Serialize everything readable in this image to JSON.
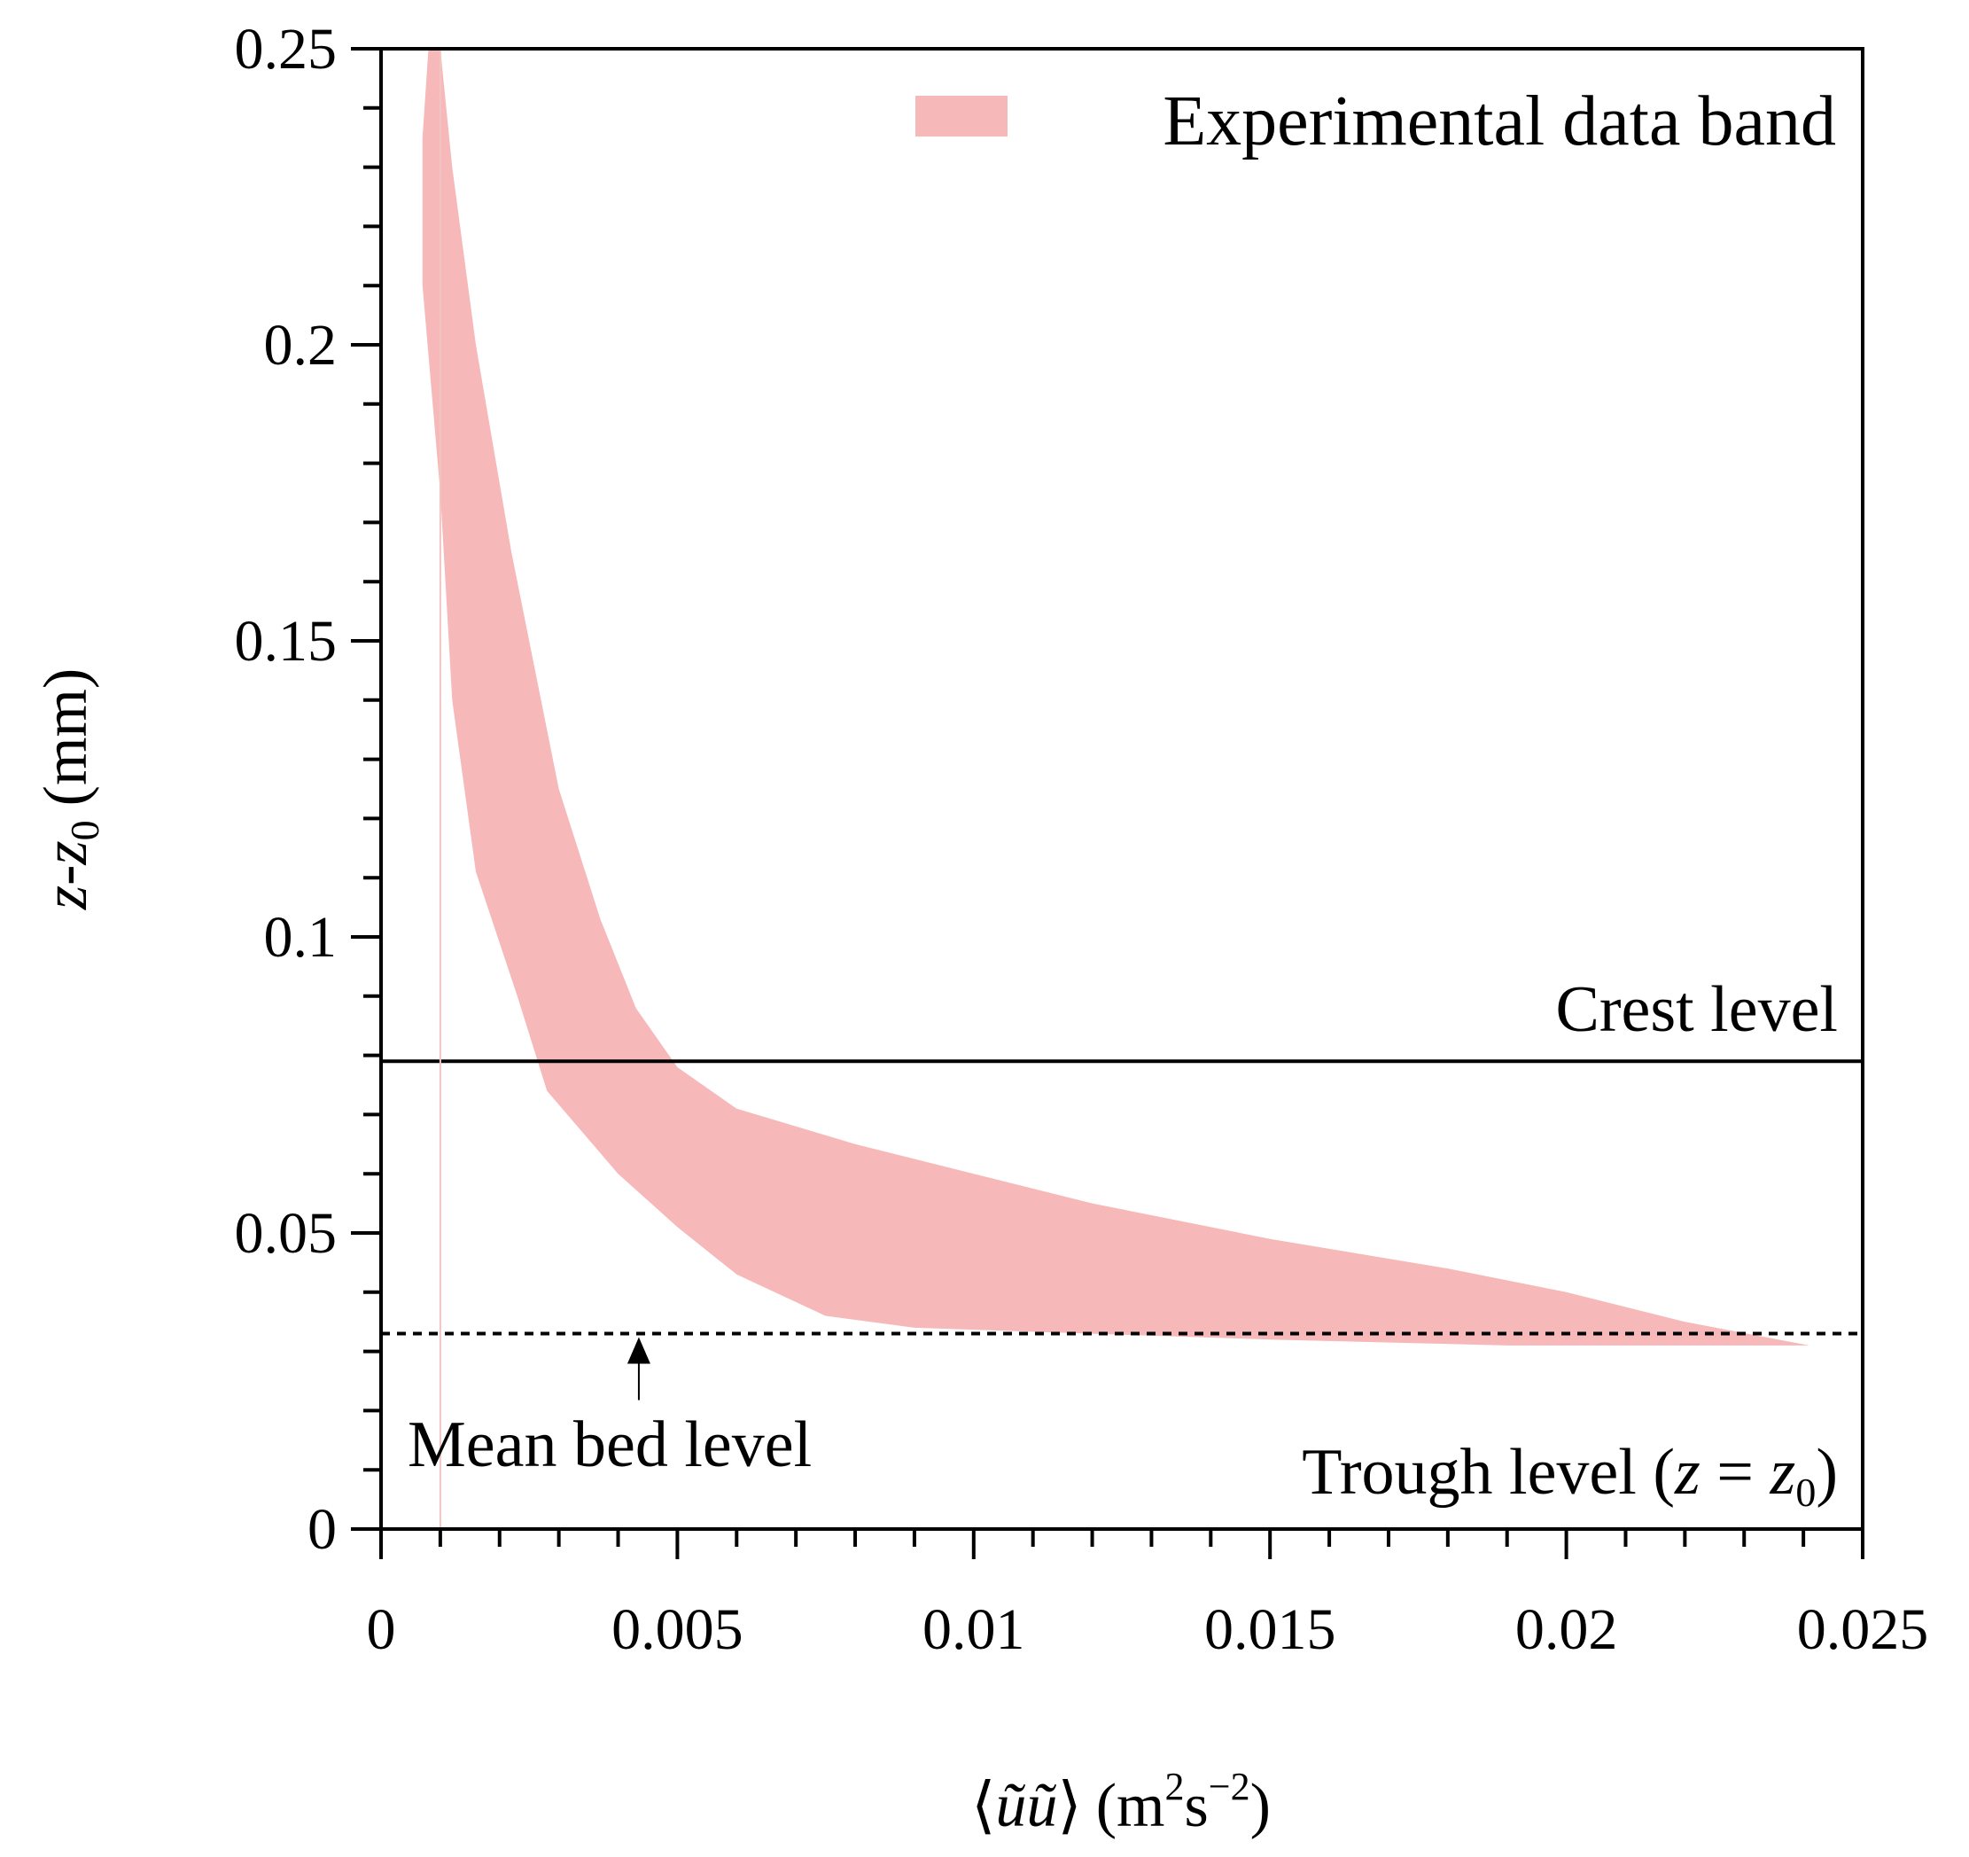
{
  "chart_data": {
    "type": "area",
    "title": "",
    "xlabel": "⟨ũũ⟩ (m²s⁻²)",
    "xlabel_parts": {
      "prefix": "⟨",
      "u1": "ũ",
      "u2": "ũ",
      "close": "⟩",
      "open_paren": "(",
      "unit_m": "m",
      "sup1": "2",
      "unit_s": "s",
      "sup2": "−2",
      "close_paren": ")"
    },
    "ylabel": "z-z0 (mm)",
    "ylabel_parts": {
      "z": "z",
      "dash": "-",
      "z0": "z",
      "sub0": "0",
      "unit": "(mm)"
    },
    "xlim": [
      0,
      0.025
    ],
    "ylim": [
      0,
      0.25
    ],
    "x_ticks": [
      {
        "value": 0,
        "label": "0"
      },
      {
        "value": 0.005,
        "label": "0.005"
      },
      {
        "value": 0.01,
        "label": "0.01"
      },
      {
        "value": 0.015,
        "label": "0.015"
      },
      {
        "value": 0.02,
        "label": "0.02"
      },
      {
        "value": 0.025,
        "label": "0.025"
      }
    ],
    "y_ticks": [
      {
        "value": 0,
        "label": "0"
      },
      {
        "value": 0.05,
        "label": "0.05"
      },
      {
        "value": 0.1,
        "label": "0.1"
      },
      {
        "value": 0.15,
        "label": "0.15"
      },
      {
        "value": 0.2,
        "label": "0.2"
      },
      {
        "value": 0.25,
        "label": "0.25"
      }
    ],
    "x_minor_step": 0.001,
    "y_minor_step": 0.01,
    "series": [
      {
        "name": "Experimental data band",
        "color": "#f6b8b8",
        "band_outer": [
          [
            0.001,
            0.25
          ],
          [
            0.0012,
            0.23
          ],
          [
            0.0016,
            0.2
          ],
          [
            0.0022,
            0.165
          ],
          [
            0.003,
            0.125
          ],
          [
            0.0037,
            0.103
          ],
          [
            0.0043,
            0.088
          ],
          [
            0.005,
            0.078
          ],
          [
            0.006,
            0.071
          ],
          [
            0.008,
            0.065
          ],
          [
            0.01,
            0.06
          ],
          [
            0.012,
            0.055
          ],
          [
            0.015,
            0.049
          ],
          [
            0.018,
            0.044
          ],
          [
            0.02,
            0.04
          ],
          [
            0.022,
            0.035
          ],
          [
            0.0241,
            0.031
          ]
        ],
        "band_inner": [
          [
            0.0241,
            0.031
          ],
          [
            0.019,
            0.031
          ],
          [
            0.015,
            0.032
          ],
          [
            0.012,
            0.033
          ],
          [
            0.009,
            0.034
          ],
          [
            0.0075,
            0.036
          ],
          [
            0.006,
            0.043
          ],
          [
            0.005,
            0.051
          ],
          [
            0.004,
            0.06
          ],
          [
            0.0028,
            0.074
          ],
          [
            0.0023,
            0.09
          ],
          [
            0.0016,
            0.111
          ],
          [
            0.0012,
            0.14
          ],
          [
            0.001,
            0.175
          ],
          [
            0.0007,
            0.21
          ],
          [
            0.0007,
            0.235
          ],
          [
            0.0008,
            0.25
          ]
        ]
      }
    ],
    "reference_lines": [
      {
        "name": "crest-level-line",
        "y": 0.079,
        "style": "solid",
        "label": "Crest level"
      },
      {
        "name": "mean-bed-level-line",
        "y": 0.033,
        "style": "dashed",
        "label": "Mean bed level"
      },
      {
        "name": "faint-vertical-line",
        "x": 0.001,
        "style": "solid",
        "color": "#f2c4c4"
      }
    ],
    "annotations": {
      "crest": "Crest level",
      "mean_bed": "Mean bed level",
      "mean_bed_arrow_x": 0.00435,
      "trough_prefix": "Trough level (",
      "trough_z": "z",
      "trough_eq": " = ",
      "trough_z0": "z",
      "trough_sub": "0",
      "trough_suffix": ")"
    },
    "legend": {
      "position": "top-right",
      "label": "Experimental data band"
    },
    "grid": false
  }
}
